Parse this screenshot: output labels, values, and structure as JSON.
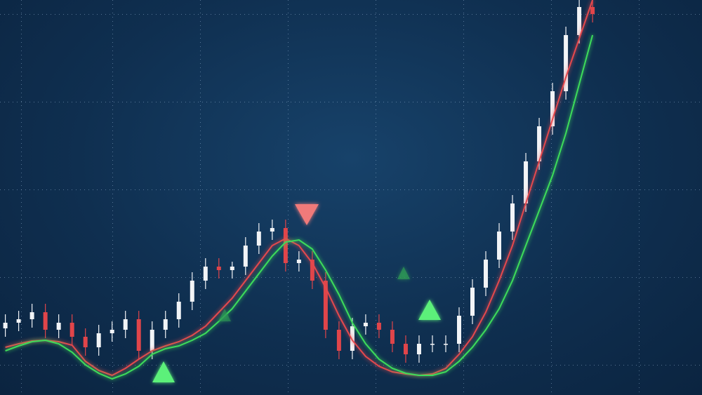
{
  "chart_data": {
    "type": "candlestick",
    "x": [
      1,
      2,
      3,
      4,
      5,
      6,
      7,
      8,
      9,
      10,
      11,
      12,
      13,
      14,
      15,
      16,
      17,
      18,
      19,
      20,
      21,
      22,
      23,
      24,
      25,
      26,
      27,
      28,
      29,
      30,
      31,
      32,
      33,
      34,
      35,
      36,
      37,
      38,
      39,
      40,
      41,
      42,
      43,
      44,
      45
    ],
    "xlim": [
      0.6,
      53.2
    ],
    "ylim": [
      0,
      563
    ],
    "grid": true,
    "up_color": "#f2f4f7",
    "down_color": "#e0454a",
    "open": [
      95,
      103,
      108,
      118,
      93,
      103,
      83,
      68,
      88,
      93,
      108,
      63,
      93,
      108,
      133,
      163,
      183,
      178,
      183,
      213,
      233,
      238,
      188,
      193,
      163,
      93,
      63,
      98,
      103,
      93,
      73,
      58,
      73,
      73,
      73,
      113,
      153,
      193,
      233,
      273,
      333,
      383,
      433,
      513,
      553
    ],
    "high": [
      115,
      120,
      130,
      130,
      115,
      115,
      95,
      100,
      105,
      120,
      120,
      105,
      120,
      145,
      175,
      195,
      195,
      190,
      225,
      245,
      250,
      250,
      205,
      205,
      175,
      105,
      110,
      115,
      115,
      105,
      85,
      85,
      85,
      85,
      125,
      165,
      205,
      245,
      285,
      345,
      395,
      445,
      525,
      565,
      565
    ],
    "low": [
      83,
      91,
      96,
      81,
      81,
      71,
      56,
      56,
      76,
      81,
      51,
      51,
      81,
      96,
      121,
      151,
      166,
      166,
      171,
      201,
      221,
      176,
      176,
      151,
      81,
      51,
      51,
      86,
      81,
      61,
      46,
      46,
      61,
      61,
      61,
      101,
      141,
      181,
      221,
      261,
      321,
      371,
      421,
      501,
      531
    ],
    "close": [
      103,
      108,
      118,
      93,
      103,
      83,
      68,
      88,
      93,
      108,
      63,
      93,
      108,
      133,
      163,
      183,
      178,
      183,
      213,
      233,
      238,
      188,
      193,
      163,
      93,
      63,
      98,
      103,
      93,
      73,
      58,
      73,
      73,
      73,
      113,
      153,
      193,
      233,
      273,
      333,
      383,
      433,
      513,
      553,
      543
    ],
    "series": [
      {
        "color": "#e5484d",
        "values": [
          68,
          73,
          77,
          78,
          76,
          71,
          48,
          35,
          28,
          38,
          51,
          63,
          70,
          76,
          85,
          98,
          118,
          138,
          163,
          188,
          213,
          223,
          213,
          188,
          153,
          113,
          78,
          55,
          41,
          33,
          30,
          28,
          30,
          38,
          58,
          83,
          118,
          163,
          213,
          273,
          333,
          393,
          453,
          508,
          563
        ]
      },
      {
        "color": "#3ddc5a",
        "values": [
          63,
          70,
          76,
          78,
          73,
          61,
          43,
          31,
          23,
          30,
          41,
          58,
          66,
          70,
          78,
          88,
          105,
          123,
          148,
          173,
          198,
          218,
          221,
          208,
          178,
          143,
          103,
          73,
          51,
          38,
          31,
          28,
          28,
          33,
          48,
          68,
          93,
          123,
          163,
          213,
          263,
          313,
          373,
          443,
          513
        ]
      }
    ]
  }
}
